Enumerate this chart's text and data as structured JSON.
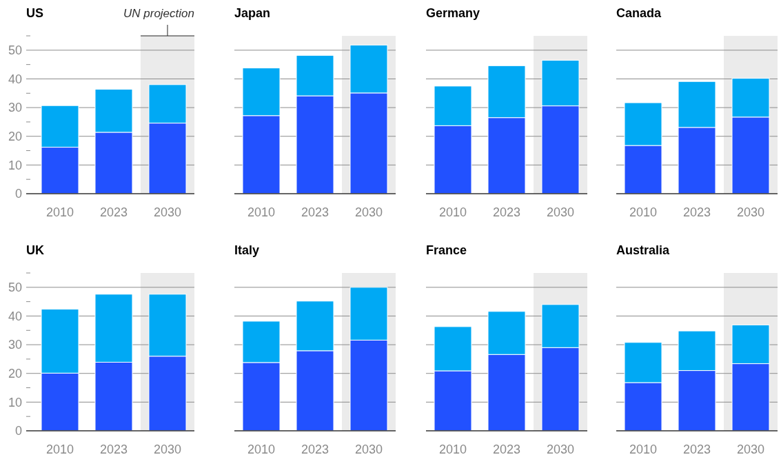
{
  "chart_data": [
    {
      "type": "bar",
      "title": "US",
      "categories": [
        "2010",
        "2023",
        "2030"
      ],
      "stacked": true,
      "ylim": [
        0,
        55
      ],
      "yticks": [
        0,
        {
          "value": 5,
          "label": null
        },
        10,
        {
          "value": 15,
          "label": null
        },
        20,
        {
          "value": 25,
          "label": null
        },
        30,
        {
          "value": 35,
          "label": null
        },
        40,
        {
          "value": 45,
          "label": null
        },
        50,
        {
          "value": 55,
          "label": null
        }
      ],
      "grid": "y",
      "bands": [
        {
          "axis": "x",
          "from": "2030",
          "to": "2030",
          "label": "UN projection",
          "color": "#ebebeb"
        }
      ],
      "series": [
        {
          "color": "#2251ff",
          "values": [
            16.2,
            21.4,
            24.6
          ]
        },
        {
          "color": "#00a9f4",
          "values": [
            14.5,
            15.0,
            13.4
          ]
        }
      ]
    },
    {
      "type": "bar",
      "title": "Japan",
      "categories": [
        "2010",
        "2023",
        "2030"
      ],
      "stacked": true,
      "ylim": [
        0,
        55
      ],
      "yticks": [
        0,
        10,
        20,
        30,
        40,
        50
      ],
      "grid": "y",
      "tick_labels": "x",
      "bands": [
        {
          "axis": "x",
          "from": "2030",
          "to": "2030",
          "color": "#ebebeb"
        }
      ],
      "series": [
        {
          "color": "#2251ff",
          "values": [
            27.2,
            34.1,
            35.1
          ]
        },
        {
          "color": "#00a9f4",
          "values": [
            16.6,
            14.1,
            16.7
          ]
        }
      ]
    },
    {
      "type": "bar",
      "title": "Germany",
      "categories": [
        "2010",
        "2023",
        "2030"
      ],
      "stacked": true,
      "ylim": [
        0,
        55
      ],
      "yticks": [
        0,
        10,
        20,
        30,
        40,
        50
      ],
      "grid": "y",
      "tick_labels": "x",
      "bands": [
        {
          "axis": "x",
          "from": "2030",
          "to": "2030",
          "color": "#ebebeb"
        }
      ],
      "series": [
        {
          "color": "#2251ff",
          "values": [
            23.7,
            26.5,
            30.6
          ]
        },
        {
          "color": "#00a9f4",
          "values": [
            13.8,
            18.1,
            15.9
          ]
        }
      ]
    },
    {
      "type": "bar",
      "title": "Canada",
      "categories": [
        "2010",
        "2023",
        "2030"
      ],
      "stacked": true,
      "ylim": [
        0,
        55
      ],
      "yticks": [
        0,
        10,
        20,
        30,
        40,
        50
      ],
      "grid": "y",
      "tick_labels": "x",
      "bands": [
        {
          "axis": "x",
          "from": "2030",
          "to": "2030",
          "color": "#ebebeb"
        }
      ],
      "series": [
        {
          "color": "#2251ff",
          "values": [
            16.8,
            23.1,
            26.7
          ]
        },
        {
          "color": "#00a9f4",
          "values": [
            14.9,
            16.0,
            13.5
          ]
        }
      ]
    },
    {
      "type": "bar",
      "title": "UK",
      "categories": [
        "2010",
        "2023",
        "2030"
      ],
      "stacked": true,
      "ylim": [
        0,
        55
      ],
      "yticks": [
        0,
        {
          "value": 5,
          "label": null
        },
        10,
        {
          "value": 15,
          "label": null
        },
        20,
        {
          "value": 25,
          "label": null
        },
        30,
        {
          "value": 35,
          "label": null
        },
        40,
        {
          "value": 45,
          "label": null
        },
        50,
        {
          "value": 55,
          "label": null
        }
      ],
      "grid": "y",
      "bands": [
        {
          "axis": "x",
          "from": "2030",
          "to": "2030",
          "color": "#ebebeb"
        }
      ],
      "series": [
        {
          "color": "#2251ff",
          "values": [
            20.1,
            23.9,
            26.0
          ]
        },
        {
          "color": "#00a9f4",
          "values": [
            22.3,
            23.7,
            21.6
          ]
        }
      ]
    },
    {
      "type": "bar",
      "title": "Italy",
      "categories": [
        "2010",
        "2023",
        "2030"
      ],
      "stacked": true,
      "ylim": [
        0,
        55
      ],
      "yticks": [
        0,
        10,
        20,
        30,
        40,
        50
      ],
      "grid": "y",
      "tick_labels": "x",
      "bands": [
        {
          "axis": "x",
          "from": "2030",
          "to": "2030",
          "color": "#ebebeb"
        }
      ],
      "series": [
        {
          "color": "#2251ff",
          "values": [
            23.8,
            27.9,
            31.6
          ]
        },
        {
          "color": "#00a9f4",
          "values": [
            14.4,
            17.3,
            18.4
          ]
        }
      ]
    },
    {
      "type": "bar",
      "title": "France",
      "categories": [
        "2010",
        "2023",
        "2030"
      ],
      "stacked": true,
      "ylim": [
        0,
        55
      ],
      "yticks": [
        0,
        10,
        20,
        30,
        40,
        50
      ],
      "grid": "y",
      "tick_labels": "x",
      "bands": [
        {
          "axis": "x",
          "from": "2030",
          "to": "2030",
          "color": "#ebebeb"
        }
      ],
      "series": [
        {
          "color": "#2251ff",
          "values": [
            20.9,
            26.6,
            29.0
          ]
        },
        {
          "color": "#00a9f4",
          "values": [
            15.4,
            15.0,
            15.0
          ]
        }
      ]
    },
    {
      "type": "bar",
      "title": "Australia",
      "categories": [
        "2010",
        "2023",
        "2030"
      ],
      "stacked": true,
      "ylim": [
        0,
        55
      ],
      "yticks": [
        0,
        10,
        20,
        30,
        40,
        50
      ],
      "grid": "y",
      "tick_labels": "x",
      "bands": [
        {
          "axis": "x",
          "from": "2030",
          "to": "2030",
          "color": "#ebebeb"
        }
      ],
      "series": [
        {
          "color": "#2251ff",
          "values": [
            16.8,
            21.0,
            23.4
          ]
        },
        {
          "color": "#00a9f4",
          "values": [
            14.0,
            13.8,
            13.5
          ]
        }
      ]
    }
  ]
}
